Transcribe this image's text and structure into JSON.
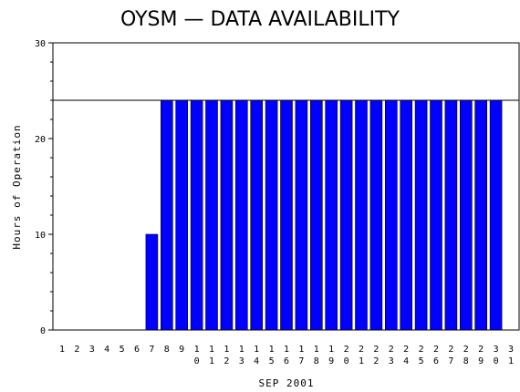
{
  "chart_data": {
    "type": "bar",
    "title": "OYSM — DATA AVAILABILITY",
    "xlabel": "SEP 2001",
    "ylabel": "Hours of Operation",
    "ylim": [
      0,
      30
    ],
    "yticks": [
      0,
      10,
      20,
      30
    ],
    "reference_line": 24,
    "grid": false,
    "colors": {
      "bar": "#0000ff",
      "axis": "#000000",
      "background": "#ffffff"
    },
    "categories": [
      "1",
      "2",
      "3",
      "4",
      "5",
      "6",
      "7",
      "8",
      "9",
      "10",
      "11",
      "12",
      "13",
      "14",
      "15",
      "16",
      "17",
      "18",
      "19",
      "20",
      "21",
      "22",
      "23",
      "24",
      "25",
      "26",
      "27",
      "28",
      "29",
      "30",
      "31"
    ],
    "values": [
      0,
      0,
      0,
      0,
      0,
      0,
      10,
      24,
      24,
      24,
      24,
      24,
      24,
      24,
      24,
      24,
      24,
      24,
      24,
      24,
      24,
      24,
      24,
      24,
      24,
      24,
      24,
      24,
      24,
      24,
      0
    ]
  }
}
